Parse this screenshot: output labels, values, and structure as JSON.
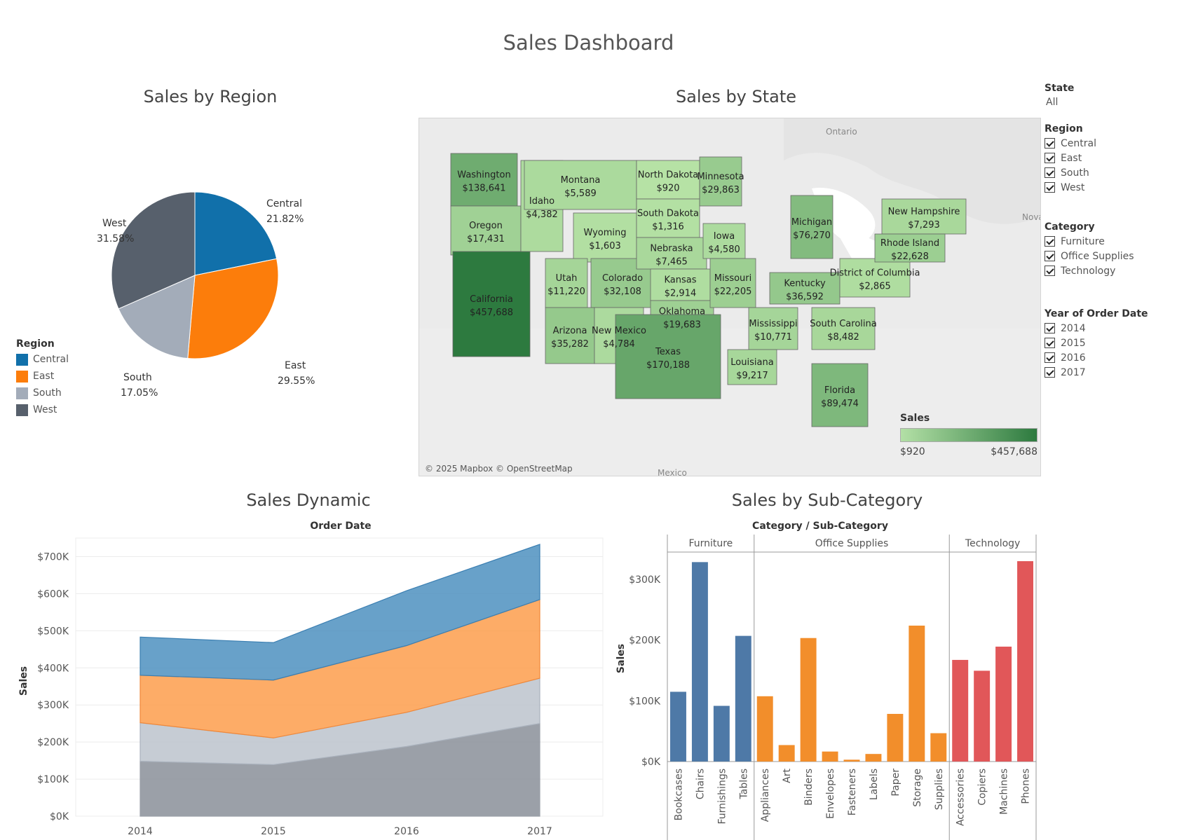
{
  "dashboard_title": "Sales Dashboard",
  "region_chart": {
    "title": "Sales by Region",
    "legend_title": "Region",
    "legend": [
      {
        "label": "Central",
        "color": "#1170aa"
      },
      {
        "label": "East",
        "color": "#fc7d0b"
      },
      {
        "label": "South",
        "color": "#a3acb9"
      },
      {
        "label": "West",
        "color": "#57606c"
      }
    ],
    "labels": {
      "central_name": "Central",
      "central_pct": "21.82%",
      "east_name": "East",
      "east_pct": "29.55%",
      "south_name": "South",
      "south_pct": "17.05%",
      "west_name": "West",
      "west_pct": "31.58%"
    }
  },
  "map_chart": {
    "title": "Sales by State",
    "legend_title": "Sales",
    "legend_min": "$920",
    "legend_max": "$457,688",
    "attribution": "© 2025 Mapbox © OpenStreetMap",
    "basemap_labels": [
      "Ontario",
      "Nova",
      "Mexico"
    ],
    "states": [
      {
        "name": "Washington",
        "sales": "$138,641",
        "value": 138641
      },
      {
        "name": "Oregon",
        "sales": "$17,431",
        "value": 17431
      },
      {
        "name": "California",
        "sales": "$457,688",
        "value": 457688
      },
      {
        "name": "Idaho",
        "sales": "$4,382",
        "value": 4382
      },
      {
        "name": "Montana",
        "sales": "$5,589",
        "value": 5589
      },
      {
        "name": "Wyoming",
        "sales": "$1,603",
        "value": 1603
      },
      {
        "name": "Utah",
        "sales": "$11,220",
        "value": 11220
      },
      {
        "name": "Colorado",
        "sales": "$32,108",
        "value": 32108
      },
      {
        "name": "Arizona",
        "sales": "$35,282",
        "value": 35282
      },
      {
        "name": "New Mexico",
        "sales": "$4,784",
        "value": 4784
      },
      {
        "name": "North Dakota",
        "sales": "$920",
        "value": 920
      },
      {
        "name": "South Dakota",
        "sales": "$1,316",
        "value": 1316
      },
      {
        "name": "Nebraska",
        "sales": "$7,465",
        "value": 7465
      },
      {
        "name": "Kansas",
        "sales": "$2,914",
        "value": 2914
      },
      {
        "name": "Oklahoma",
        "sales": "$19,683",
        "value": 19683
      },
      {
        "name": "Texas",
        "sales": "$170,188",
        "value": 170188
      },
      {
        "name": "Minnesota",
        "sales": "$29,863",
        "value": 29863
      },
      {
        "name": "Iowa",
        "sales": "$4,580",
        "value": 4580
      },
      {
        "name": "Missouri",
        "sales": "$22,205",
        "value": 22205
      },
      {
        "name": "Mississippi",
        "sales": "$10,771",
        "value": 10771
      },
      {
        "name": "Louisiana",
        "sales": "$9,217",
        "value": 9217
      },
      {
        "name": "Michigan",
        "sales": "$76,270",
        "value": 76270
      },
      {
        "name": "Kentucky",
        "sales": "$36,592",
        "value": 36592
      },
      {
        "name": "South Carolina",
        "sales": "$8,482",
        "value": 8482
      },
      {
        "name": "Florida",
        "sales": "$89,474",
        "value": 89474
      },
      {
        "name": "District of Columbia",
        "sales": "$2,865",
        "value": 2865
      },
      {
        "name": "New Hampshire",
        "sales": "$7,293",
        "value": 7293
      },
      {
        "name": "Rhode Island",
        "sales": "$22,628",
        "value": 22628
      }
    ]
  },
  "filters": {
    "state": {
      "label": "State",
      "value": "All"
    },
    "region": {
      "label": "Region",
      "items": [
        "Central",
        "East",
        "South",
        "West"
      ]
    },
    "category": {
      "label": "Category",
      "items": [
        "Furniture",
        "Office Supplies",
        "Technology"
      ]
    },
    "year": {
      "label": "Year of Order Date",
      "items": [
        "2014",
        "2015",
        "2016",
        "2017"
      ]
    }
  },
  "dynamic_chart": {
    "title": "Sales Dynamic",
    "header": "Order Date",
    "y_title": "Sales",
    "y_ticks": [
      "$0K",
      "$100K",
      "$200K",
      "$300K",
      "$400K",
      "$500K",
      "$600K",
      "$700K"
    ]
  },
  "subcat_chart": {
    "title": "Sales by Sub-Category",
    "header": "Category  /  Sub-Category",
    "y_title": "Sales",
    "y_ticks": [
      "$0K",
      "$100K",
      "$200K",
      "$300K"
    ],
    "category_labels": [
      "Furniture",
      "Office Supplies",
      "Technology"
    ]
  },
  "chart_data": [
    {
      "type": "pie",
      "title": "Sales by Region",
      "categories": [
        "Central",
        "East",
        "South",
        "West"
      ],
      "values": [
        21.82,
        29.55,
        17.05,
        31.58
      ],
      "colors": [
        "#1170aa",
        "#fc7d0b",
        "#a3acb9",
        "#57606c"
      ],
      "legend": "bottom-left"
    },
    {
      "type": "area",
      "title": "Sales Dynamic",
      "xlabel": "Order Date",
      "ylabel": "Sales",
      "x": [
        "2014",
        "2015",
        "2016",
        "2017"
      ],
      "ylim": [
        0,
        750000
      ],
      "stacked": true,
      "series": [
        {
          "name": "West",
          "values": [
            148000,
            139000,
            188000,
            250000
          ],
          "color": "#898f99"
        },
        {
          "name": "South",
          "values": [
            104000,
            72000,
            92000,
            122000
          ],
          "color": "#bcc3cd"
        },
        {
          "name": "East",
          "values": [
            128000,
            156000,
            180000,
            212000
          ],
          "color": "#fd9e4c"
        },
        {
          "name": "Central",
          "values": [
            103000,
            101000,
            148000,
            149000
          ],
          "color": "#4e91bf"
        }
      ],
      "grid": true
    },
    {
      "type": "bar",
      "title": "Sales by Sub-Category",
      "xlabel": "Category / Sub-Category",
      "ylabel": "Sales",
      "ylim": [
        0,
        345000
      ],
      "groups": [
        {
          "name": "Furniture",
          "color": "#4e79a7",
          "categories": [
            "Bookcases",
            "Chairs",
            "Furnishings",
            "Tables"
          ],
          "values": [
            114880,
            328449,
            91705,
            206966
          ]
        },
        {
          "name": "Office Supplies",
          "color": "#f28e2b",
          "categories": [
            "Appliances",
            "Art",
            "Binders",
            "Envelopes",
            "Fasteners",
            "Labels",
            "Paper",
            "Storage",
            "Supplies"
          ],
          "values": [
            107532,
            27119,
            203413,
            16476,
            3024,
            12486,
            78479,
            223844,
            46674
          ]
        },
        {
          "name": "Technology",
          "color": "#e15759",
          "categories": [
            "Accessories",
            "Copiers",
            "Machines",
            "Phones"
          ],
          "values": [
            167380,
            149528,
            189239,
            330007
          ]
        }
      ]
    }
  ]
}
